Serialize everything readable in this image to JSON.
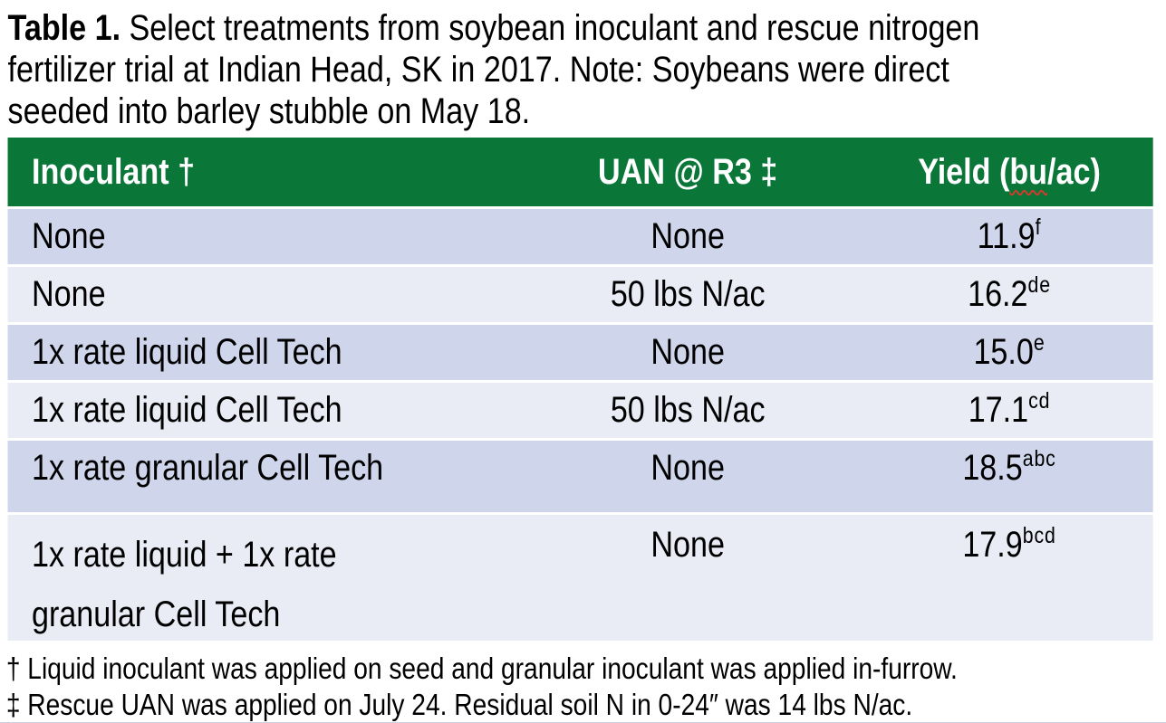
{
  "caption": {
    "label": "Table 1.",
    "text": " Select treatments from soybean inoculant and rescue nitrogen\nfertilizer trial at Indian Head, SK in 2017. Note: Soybeans were direct\nseeded into barley stubble on May 18."
  },
  "table": {
    "header": {
      "inoculant": "Inoculant †",
      "uan": "UAN @ R3 ‡",
      "yield_pre": "Yield (",
      "yield_squiggle": "bu",
      "yield_post": "/ac)"
    },
    "rows": [
      {
        "inoculant": "None",
        "uan": "None",
        "yield": "11.9",
        "yield_sup": "f"
      },
      {
        "inoculant": "None",
        "uan": "50 lbs N/ac",
        "yield": "16.2",
        "yield_sup": "de"
      },
      {
        "inoculant": "1x rate liquid Cell Tech",
        "uan": "None",
        "yield": "15.0",
        "yield_sup": "e"
      },
      {
        "inoculant": "1x rate liquid Cell Tech",
        "uan": "50 lbs N/ac",
        "yield": "17.1",
        "yield_sup": "cd"
      },
      {
        "inoculant": "1x rate granular Cell Tech",
        "uan": "None",
        "yield": "18.5",
        "yield_sup": "abc"
      },
      {
        "inoculant": "1x rate liquid + 1x rate\ngranular Cell Tech",
        "uan": "None",
        "yield": "17.9",
        "yield_sup": "bcd"
      }
    ]
  },
  "footnotes": [
    "† Liquid inoculant was applied on seed and granular inoculant was applied in-furrow.",
    "‡ Rescue UAN was applied on July 24. Residual soil N in 0-24″ was 14 lbs N/ac."
  ],
  "colors": {
    "header_bg": "#0a7638",
    "header_text": "#ffffff",
    "row_dark": "#CFD5EA",
    "row_light": "#E9EBF5",
    "spellcheck_squiggle": "#d83a2e",
    "body_text": "#000000"
  }
}
